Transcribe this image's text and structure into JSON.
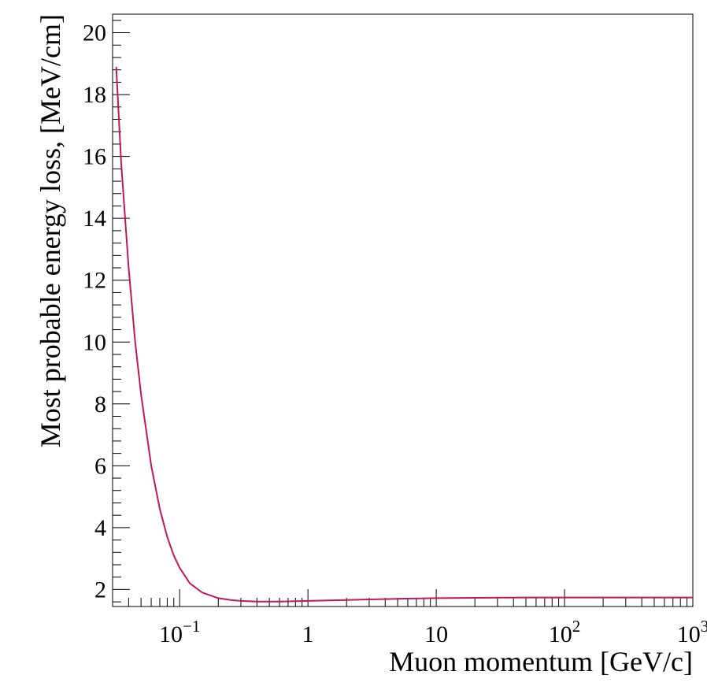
{
  "chart_data": {
    "type": "line",
    "xlabel": "Muon momentum [GeV/c]",
    "ylabel": "Most probable energy loss, [MeV/cm]",
    "x_scale": "log",
    "xlim": [
      0.03,
      1000
    ],
    "ylim": [
      1.45,
      20.6
    ],
    "grid": false,
    "x_ticks": [
      {
        "value": 0.1,
        "base": "10",
        "exp": "−1"
      },
      {
        "value": 1,
        "base": "1",
        "exp": ""
      },
      {
        "value": 10,
        "base": "10",
        "exp": ""
      },
      {
        "value": 100,
        "base": "10",
        "exp": "2"
      },
      {
        "value": 1000,
        "base": "10",
        "exp": "3"
      }
    ],
    "y_ticks": [
      {
        "value": 2,
        "label": "2"
      },
      {
        "value": 4,
        "label": "4"
      },
      {
        "value": 6,
        "label": "6"
      },
      {
        "value": 8,
        "label": "8"
      },
      {
        "value": 10,
        "label": "10"
      },
      {
        "value": 12,
        "label": "12"
      },
      {
        "value": 14,
        "label": "14"
      },
      {
        "value": 16,
        "label": "16"
      },
      {
        "value": 18,
        "label": "18"
      },
      {
        "value": 20,
        "label": "20"
      }
    ],
    "series": [
      {
        "color": "#c2185b",
        "x": [
          0.032,
          0.035,
          0.04,
          0.045,
          0.05,
          0.06,
          0.07,
          0.08,
          0.09,
          0.1,
          0.12,
          0.15,
          0.2,
          0.25,
          0.3,
          0.4,
          0.5,
          0.6,
          0.8,
          1,
          2,
          3,
          5,
          10,
          20,
          50,
          100,
          200,
          500,
          1000
        ],
        "y": [
          18.9,
          15.8,
          12.4,
          10.0,
          8.3,
          6.0,
          4.6,
          3.7,
          3.1,
          2.7,
          2.2,
          1.9,
          1.72,
          1.66,
          1.63,
          1.61,
          1.61,
          1.61,
          1.62,
          1.63,
          1.66,
          1.68,
          1.7,
          1.72,
          1.73,
          1.74,
          1.74,
          1.74,
          1.74,
          1.74
        ]
      }
    ]
  }
}
